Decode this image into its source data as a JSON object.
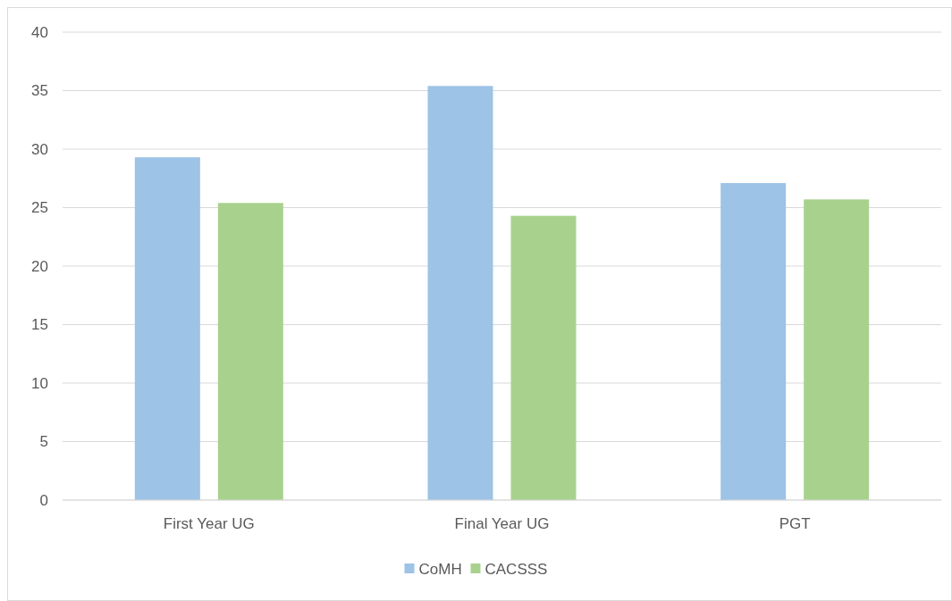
{
  "chart_data": {
    "type": "bar",
    "categories": [
      "First Year UG",
      "Final Year UG",
      "PGT"
    ],
    "series": [
      {
        "name": "CoMH",
        "color": "#9dc3e6",
        "values": [
          29.3,
          35.4,
          27.1
        ]
      },
      {
        "name": "CACSSS",
        "color": "#a9d18e",
        "values": [
          25.4,
          24.3,
          25.7
        ]
      }
    ],
    "ylim": [
      0,
      40
    ],
    "yticks": [
      0,
      5,
      10,
      15,
      20,
      25,
      30,
      35,
      40
    ],
    "grid": "y",
    "legend": "bottom"
  }
}
